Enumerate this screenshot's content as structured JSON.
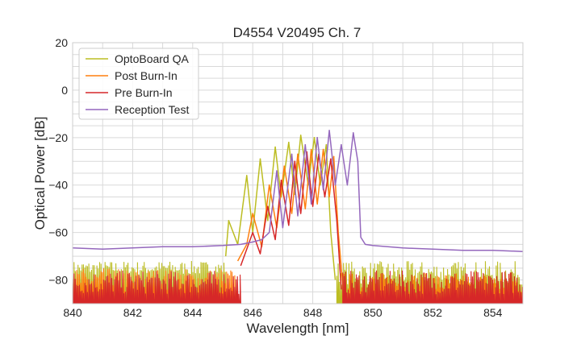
{
  "chart_data": {
    "type": "line",
    "title": "D4554 V20495 Ch. 7",
    "xlabel": "Wavelength [nm]",
    "ylabel": "Optical Power [dB]",
    "xlim": [
      840,
      855
    ],
    "ylim": [
      -90,
      20
    ],
    "xticks": [
      "840",
      "842",
      "844",
      "846",
      "848",
      "850",
      "852",
      "854"
    ],
    "yticks": [
      "−80",
      "−60",
      "−40",
      "−20",
      "0",
      "20"
    ],
    "grid": true,
    "legend_position": "top-left",
    "series": [
      {
        "name": "OptoBoard QA",
        "color": "#bcbd22",
        "noise": {
          "x_from": 840,
          "x_to": 845.1,
          "top": [
            -78,
            -72
          ],
          "bottom": -90
        },
        "noise_right": {
          "x_from": 848.8,
          "x_to": 855,
          "top": [
            -82,
            -72
          ],
          "bottom": -90
        },
        "peaks": [
          {
            "x": 845.2,
            "y": -55
          },
          {
            "x": 845.8,
            "y": -36
          },
          {
            "x": 846.25,
            "y": -29
          },
          {
            "x": 846.75,
            "y": -24
          },
          {
            "x": 847.2,
            "y": -22
          },
          {
            "x": 847.6,
            "y": -19
          },
          {
            "x": 848.05,
            "y": -20
          },
          {
            "x": 848.45,
            "y": -23
          }
        ],
        "points": [
          [
            845.1,
            -70
          ],
          [
            845.2,
            -55
          ],
          [
            845.5,
            -65
          ],
          [
            845.8,
            -36
          ],
          [
            846.0,
            -60
          ],
          [
            846.25,
            -29
          ],
          [
            846.5,
            -55
          ],
          [
            846.75,
            -24
          ],
          [
            846.95,
            -45
          ],
          [
            847.2,
            -22
          ],
          [
            847.4,
            -44
          ],
          [
            847.6,
            -19
          ],
          [
            847.85,
            -40
          ],
          [
            848.05,
            -20
          ],
          [
            848.25,
            -40
          ],
          [
            848.45,
            -23
          ],
          [
            848.6,
            -60
          ],
          [
            848.75,
            -80
          ]
        ]
      },
      {
        "name": "Post Burn-In",
        "color": "#ff7f0e",
        "noise": {
          "x_from": 840,
          "x_to": 845.5,
          "top": [
            -86,
            -75
          ],
          "bottom": -90
        },
        "noise_right": {
          "x_from": 849.0,
          "x_to": 855,
          "top": [
            -86,
            -77
          ],
          "bottom": -90
        },
        "peaks": [
          {
            "x": 846.0,
            "y": -52
          },
          {
            "x": 846.55,
            "y": -40
          },
          {
            "x": 847.05,
            "y": -32
          },
          {
            "x": 847.5,
            "y": -27
          },
          {
            "x": 847.95,
            "y": -25
          },
          {
            "x": 848.35,
            "y": -25
          },
          {
            "x": 848.7,
            "y": -28
          }
        ],
        "points": [
          [
            845.5,
            -72
          ],
          [
            845.8,
            -65
          ],
          [
            846.0,
            -52
          ],
          [
            846.3,
            -66
          ],
          [
            846.55,
            -40
          ],
          [
            846.8,
            -58
          ],
          [
            847.05,
            -32
          ],
          [
            847.3,
            -52
          ],
          [
            847.5,
            -27
          ],
          [
            847.75,
            -50
          ],
          [
            847.95,
            -25
          ],
          [
            848.15,
            -48
          ],
          [
            848.35,
            -25
          ],
          [
            848.55,
            -45
          ],
          [
            848.7,
            -28
          ],
          [
            848.85,
            -60
          ],
          [
            849.0,
            -82
          ]
        ]
      },
      {
        "name": "Pre Burn-In",
        "color": "#d62728",
        "noise": {
          "x_from": 840,
          "x_to": 845.6,
          "top": [
            -86,
            -76
          ],
          "bottom": -90
        },
        "noise_right": {
          "x_from": 849.0,
          "x_to": 855,
          "top": [
            -86,
            -76
          ],
          "bottom": -90
        },
        "peaks": [
          {
            "x": 846.0,
            "y": -60
          },
          {
            "x": 846.5,
            "y": -49
          },
          {
            "x": 846.95,
            "y": -38
          },
          {
            "x": 847.4,
            "y": -30
          },
          {
            "x": 847.8,
            "y": -26
          },
          {
            "x": 848.2,
            "y": -27
          },
          {
            "x": 848.6,
            "y": -29
          }
        ],
        "points": [
          [
            845.6,
            -74
          ],
          [
            845.8,
            -67
          ],
          [
            846.0,
            -60
          ],
          [
            846.25,
            -69
          ],
          [
            846.5,
            -49
          ],
          [
            846.75,
            -63
          ],
          [
            846.95,
            -38
          ],
          [
            847.2,
            -57
          ],
          [
            847.4,
            -30
          ],
          [
            847.6,
            -52
          ],
          [
            847.8,
            -26
          ],
          [
            848.0,
            -49
          ],
          [
            848.2,
            -27
          ],
          [
            848.4,
            -45
          ],
          [
            848.6,
            -29
          ],
          [
            848.8,
            -55
          ],
          [
            848.95,
            -84
          ]
        ]
      },
      {
        "name": "Reception Test",
        "color": "#9467bd",
        "noise": null,
        "peaks": [
          {
            "x": 846.8,
            "y": -34
          },
          {
            "x": 847.3,
            "y": -27
          },
          {
            "x": 847.75,
            "y": -23
          },
          {
            "x": 848.15,
            "y": -20
          },
          {
            "x": 848.55,
            "y": -17
          },
          {
            "x": 848.95,
            "y": -23
          },
          {
            "x": 849.35,
            "y": -18
          }
        ],
        "points": [
          [
            840.0,
            -66.5
          ],
          [
            841.0,
            -67
          ],
          [
            842.0,
            -66.5
          ],
          [
            843.0,
            -66
          ],
          [
            844.0,
            -66
          ],
          [
            845.0,
            -65.5
          ],
          [
            845.6,
            -65
          ],
          [
            846.0,
            -64
          ],
          [
            846.3,
            -63
          ],
          [
            846.55,
            -60
          ],
          [
            846.8,
            -34
          ],
          [
            847.0,
            -58
          ],
          [
            847.3,
            -27
          ],
          [
            847.5,
            -53
          ],
          [
            847.75,
            -23
          ],
          [
            847.95,
            -48
          ],
          [
            848.15,
            -20
          ],
          [
            848.35,
            -42
          ],
          [
            848.55,
            -17
          ],
          [
            848.75,
            -40
          ],
          [
            848.95,
            -23
          ],
          [
            849.15,
            -40
          ],
          [
            849.35,
            -18
          ],
          [
            849.5,
            -30
          ],
          [
            849.6,
            -62
          ],
          [
            849.75,
            -65
          ],
          [
            850.0,
            -65.5
          ],
          [
            851.0,
            -66.5
          ],
          [
            852.0,
            -67
          ],
          [
            853.0,
            -67.5
          ],
          [
            854.0,
            -67.5
          ],
          [
            855.0,
            -68
          ]
        ]
      }
    ]
  }
}
